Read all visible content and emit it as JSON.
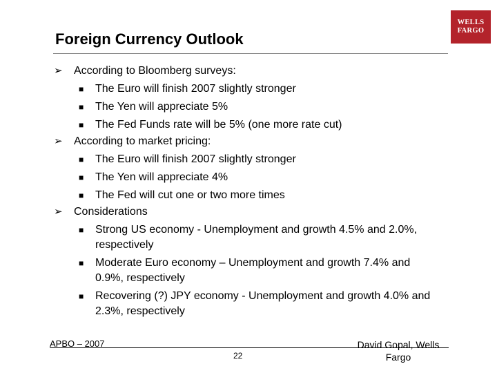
{
  "slide": {
    "title": "Foreign Currency Outlook",
    "logo": {
      "line1": "WELLS",
      "line2": "FARGO"
    },
    "bullets": [
      {
        "text": "According to Bloomberg surveys:",
        "sub": [
          "The Euro will finish 2007 slightly stronger",
          "The Yen will appreciate 5%",
          "The Fed Funds rate will be 5% (one more rate cut)"
        ]
      },
      {
        "text": "According to market pricing:",
        "sub": [
          "The Euro will finish 2007 slightly stronger",
          "The Yen will appreciate 4%",
          "The Fed will cut one or two more times"
        ]
      },
      {
        "text": "Considerations",
        "sub": [
          "Strong US economy - Unemployment and growth 4.5% and 2.0%, respectively",
          "Moderate Euro economy – Unemployment and growth 7.4% and 0.9%, respectively",
          "Recovering (?) JPY economy - Unemployment and growth 4.0% and 2.3%, respectively"
        ]
      }
    ],
    "footer": {
      "left": "APBO – 2007",
      "page": "22",
      "right": "David Gopal, Wells Fargo"
    },
    "colors": {
      "logo_bg": "#b3232b",
      "text": "#000000"
    }
  }
}
